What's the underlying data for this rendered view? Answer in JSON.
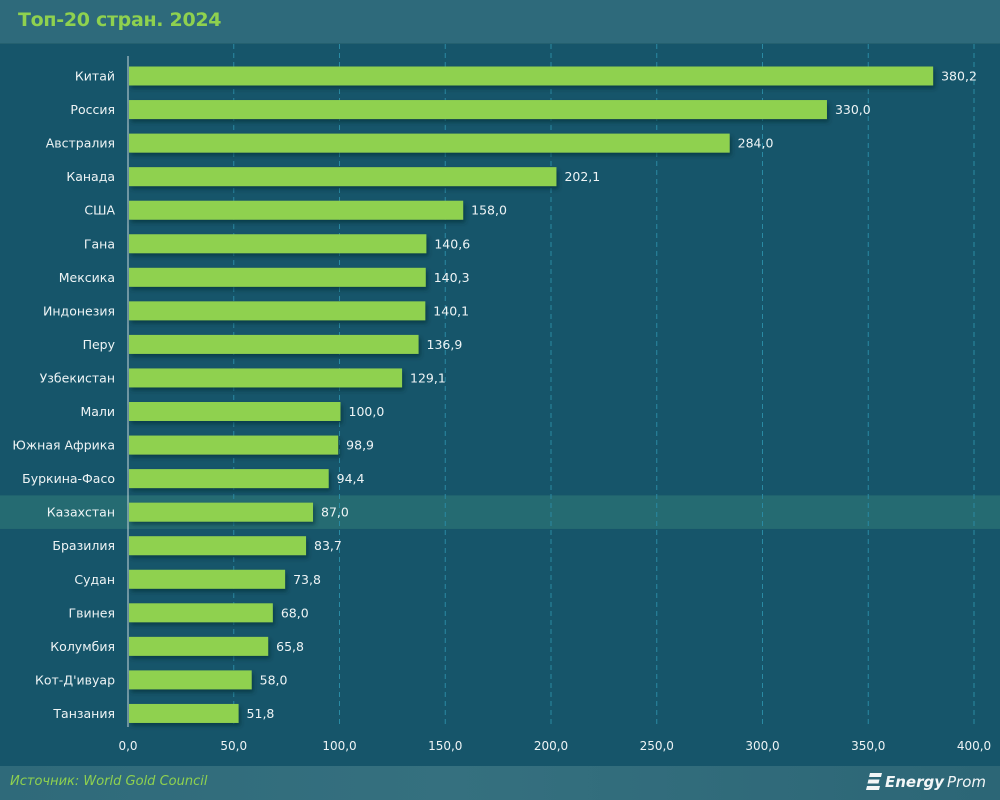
{
  "header": {
    "title": "Топ-20 стран. 2024"
  },
  "footer": {
    "source": "Источник: World Gold Council",
    "logo_bold": "Energy",
    "logo_light": "Prom"
  },
  "colors": {
    "background": "#16556a",
    "bar": "#8fd14f",
    "highlight_row": "#256b72",
    "gridline": "#2a8aa3",
    "title": "#8fd14f",
    "text": "#eef4f5"
  },
  "chart_data": {
    "type": "bar",
    "orientation": "horizontal",
    "title": "Топ-20 стран. 2024",
    "xlabel": "",
    "ylabel": "",
    "xlim": [
      0,
      400
    ],
    "xticks": [
      0,
      50,
      100,
      150,
      200,
      250,
      300,
      350,
      400
    ],
    "xtick_labels": [
      "0,0",
      "50,0",
      "100,0",
      "150,0",
      "200,0",
      "250,0",
      "300,0",
      "350,0",
      "400,0"
    ],
    "grid": "vertical dashed",
    "highlighted_category": "Казахстан",
    "categories": [
      "Китай",
      "Россия",
      "Австралия",
      "Канада",
      "США",
      "Гана",
      "Мексика",
      "Индонезия",
      "Перу",
      "Узбекистан",
      "Мали",
      "Южная Африка",
      "Буркина-Фасо",
      "Казахстан",
      "Бразилия",
      "Судан",
      "Гвинея",
      "Колумбия",
      "Кот-Д'ивуар",
      "Танзания"
    ],
    "values": [
      380.2,
      330.0,
      284.0,
      202.1,
      158.0,
      140.6,
      140.3,
      140.1,
      136.9,
      129.1,
      100.0,
      98.9,
      94.4,
      87.0,
      83.7,
      73.8,
      68.0,
      65.8,
      58.0,
      51.8
    ],
    "value_labels": [
      "380,2",
      "330,0",
      "284,0",
      "202,1",
      "158,0",
      "140,6",
      "140,3",
      "140,1",
      "136,9",
      "129,1",
      "100,0",
      "98,9",
      "94,4",
      "87,0",
      "83,7",
      "73,8",
      "68,0",
      "65,8",
      "58,0",
      "51,8"
    ]
  }
}
